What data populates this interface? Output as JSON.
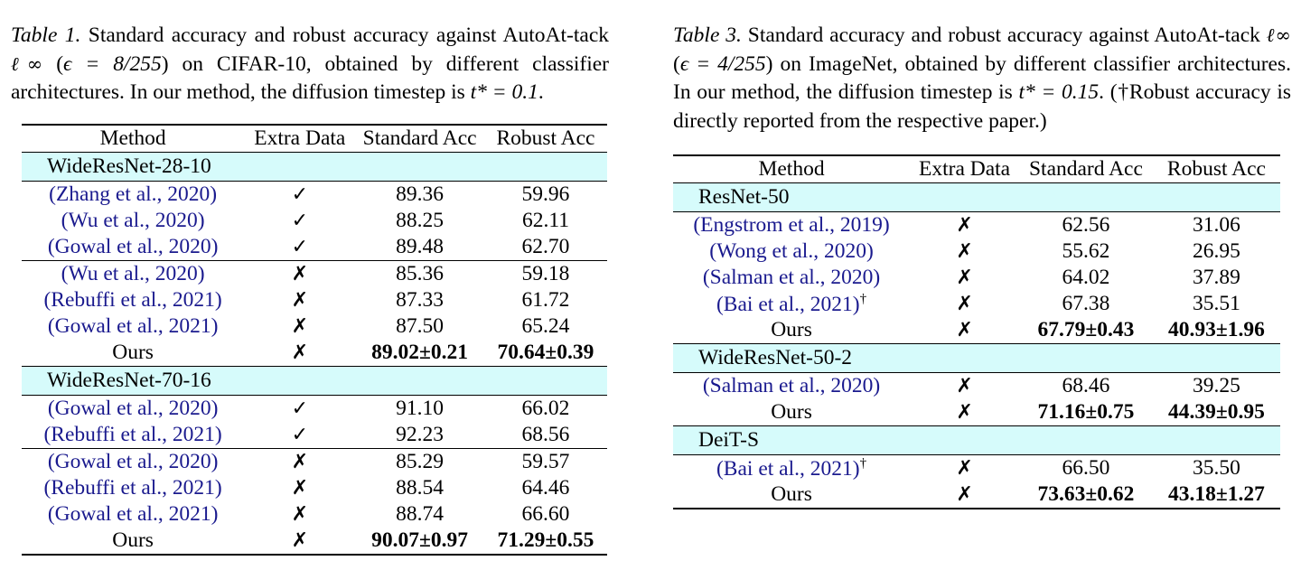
{
  "table1": {
    "caption": {
      "label": "Table 1.",
      "text_a": " Standard accuracy and robust accuracy against AutoAt-tack ",
      "norm": "ℓ∞",
      "text_b": " (",
      "eps": "ϵ = 8/255",
      "text_c": ") on CIFAR-10, obtained by different classifier architectures. In our method, the diffusion timestep is ",
      "tstar": "t* = 0.1",
      "text_d": "."
    },
    "headers": [
      "Method",
      "Extra Data",
      "Standard Acc",
      "Robust Acc"
    ],
    "groups": [
      {
        "name": "WideResNet-28-10",
        "rows": [
          {
            "method": "(Zhang et al., 2020)",
            "extra": "✓",
            "std": "89.36",
            "rob": "59.96",
            "cite": true
          },
          {
            "method": "(Wu et al., 2020)",
            "extra": "✓",
            "std": "88.25",
            "rob": "62.11",
            "cite": true
          },
          {
            "method": "(Gowal et al., 2020)",
            "extra": "✓",
            "std": "89.48",
            "rob": "62.70",
            "cite": true
          },
          {
            "method": "(Wu et al., 2020)",
            "extra": "✗",
            "std": "85.36",
            "rob": "59.18",
            "cite": true,
            "sep": true
          },
          {
            "method": "(Rebuffi et al., 2021)",
            "extra": "✗",
            "std": "87.33",
            "rob": "61.72",
            "cite": true
          },
          {
            "method": "(Gowal et al., 2021)",
            "extra": "✗",
            "std": "87.50",
            "rob": "65.24",
            "cite": true
          },
          {
            "method": "Ours",
            "extra": "✗",
            "std": "89.02±0.21",
            "rob": "70.64±0.39",
            "bold": true
          }
        ]
      },
      {
        "name": "WideResNet-70-16",
        "rows": [
          {
            "method": "(Gowal et al., 2020)",
            "extra": "✓",
            "std": "91.10",
            "rob": "66.02",
            "cite": true
          },
          {
            "method": "(Rebuffi et al., 2021)",
            "extra": "✓",
            "std": "92.23",
            "rob": "68.56",
            "cite": true
          },
          {
            "method": "(Gowal et al., 2020)",
            "extra": "✗",
            "std": "85.29",
            "rob": "59.57",
            "cite": true,
            "sep": true
          },
          {
            "method": "(Rebuffi et al., 2021)",
            "extra": "✗",
            "std": "88.54",
            "rob": "64.46",
            "cite": true
          },
          {
            "method": "(Gowal et al., 2021)",
            "extra": "✗",
            "std": "88.74",
            "rob": "66.60",
            "cite": true
          },
          {
            "method": "Ours",
            "extra": "✗",
            "std": "90.07±0.97",
            "rob": "71.29±0.55",
            "bold": true
          }
        ]
      }
    ]
  },
  "table3": {
    "caption": {
      "label": "Table 3.",
      "text_a": " Standard accuracy and robust accuracy against AutoAt-tack ",
      "norm": "ℓ∞",
      "text_b": " (",
      "eps": "ϵ = 4/255",
      "text_c": ") on ImageNet, obtained by different classifier architectures. In our method, the diffusion timestep is ",
      "tstar": "t* = 0.15",
      "text_d": ".",
      "note": "(†Robust accuracy is directly reported from the respective paper.)"
    },
    "headers": [
      "Method",
      "Extra Data",
      "Standard Acc",
      "Robust Acc"
    ],
    "groups": [
      {
        "name": "ResNet-50",
        "rows": [
          {
            "method": "(Engstrom et al., 2019)",
            "extra": "✗",
            "std": "62.56",
            "rob": "31.06",
            "cite": true
          },
          {
            "method": "(Wong et al., 2020)",
            "extra": "✗",
            "std": "55.62",
            "rob": "26.95",
            "cite": true
          },
          {
            "method": "(Salman et al., 2020)",
            "extra": "✗",
            "std": "64.02",
            "rob": "37.89",
            "cite": true
          },
          {
            "method": "(Bai et al., 2021)",
            "dagger": "†",
            "extra": "✗",
            "std": "67.38",
            "rob": "35.51",
            "cite": true
          },
          {
            "method": "Ours",
            "extra": "✗",
            "std": "67.79±0.43",
            "rob": "40.93±1.96",
            "bold": true
          }
        ]
      },
      {
        "name": "WideResNet-50-2",
        "rows": [
          {
            "method": "(Salman et al., 2020)",
            "extra": "✗",
            "std": "68.46",
            "rob": "39.25",
            "cite": true
          },
          {
            "method": "Ours",
            "extra": "✗",
            "std": "71.16±0.75",
            "rob": "44.39±0.95",
            "bold": true
          }
        ]
      },
      {
        "name": "DeiT-S",
        "rows": [
          {
            "method": "(Bai et al., 2021)",
            "dagger": "†",
            "extra": "✗",
            "std": "66.50",
            "rob": "35.50",
            "cite": true
          },
          {
            "method": "Ours",
            "extra": "✗",
            "std": "73.63±0.62",
            "rob": "43.18±1.27",
            "bold": true
          }
        ]
      }
    ]
  }
}
